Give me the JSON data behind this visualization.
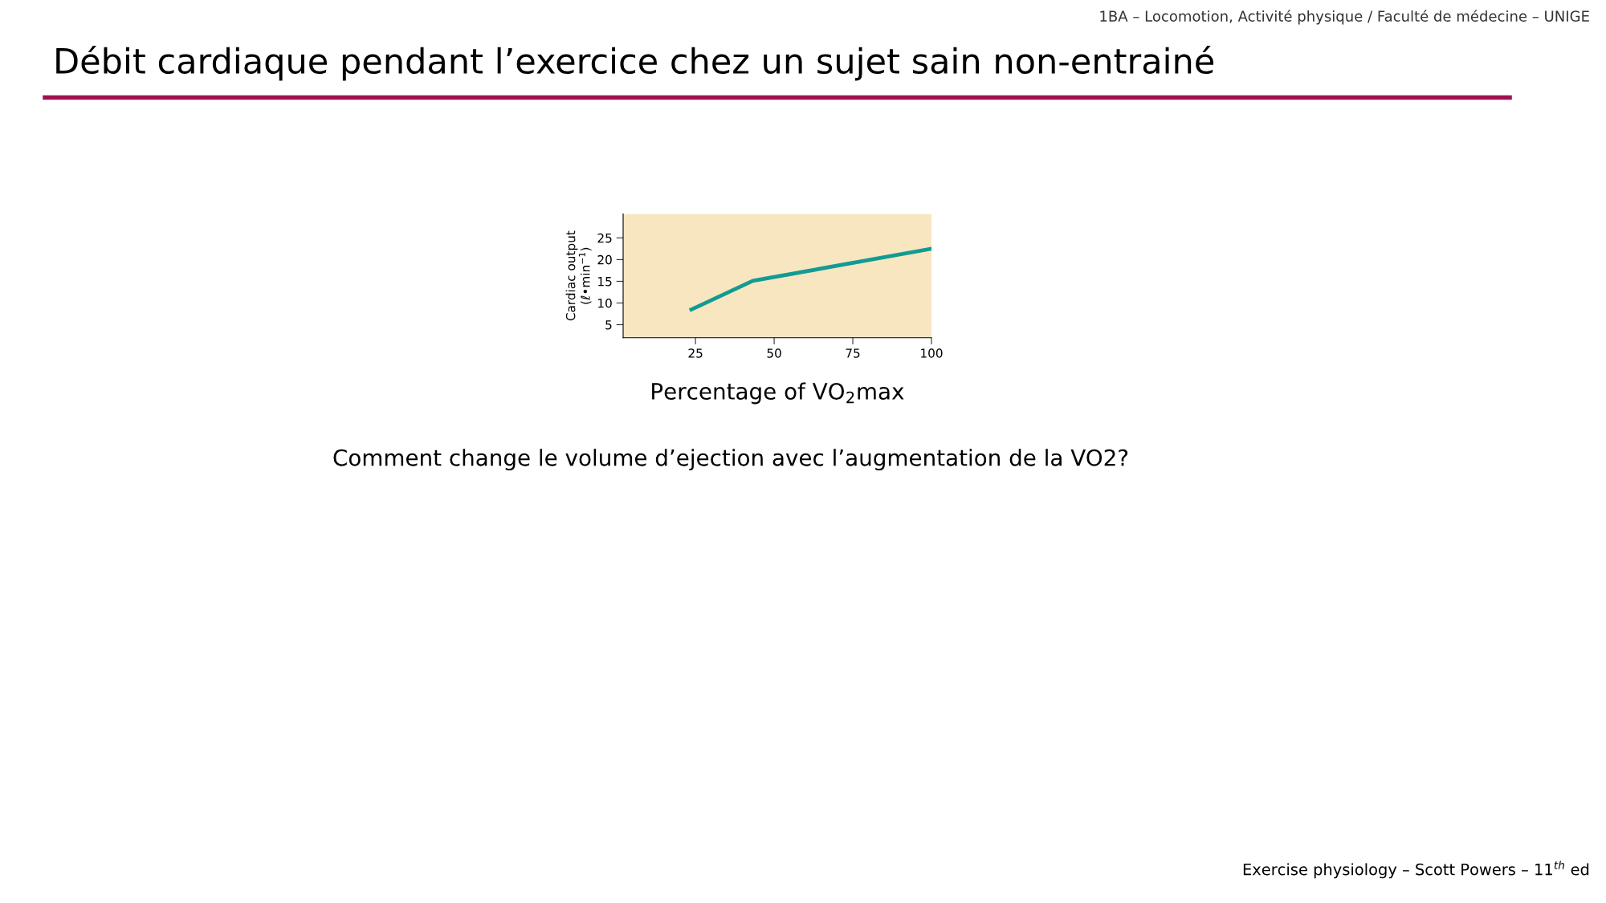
{
  "chart_data": {
    "type": "line",
    "title": "Débit cardiaque pendant l’exercice chez un sujet sain non-entrainé",
    "subtitle": "1BA – Locomotion, Activité physique / Faculté de médecine – UNIGE",
    "xlabel": "Percentage of VO$_{2}$max",
    "ylabel": "Cardiac output\n(ℓ•min$^{−1}$)",
    "x": [
      23.7,
      43.2,
      100
    ],
    "series": [
      {
        "color": "#129b94",
        "values": [
          8.5,
          15.1,
          22.5
        ]
      }
    ],
    "xlim": [
      2,
      100
    ],
    "ylim": [
      2,
      30.5
    ],
    "xticks": [
      25,
      50,
      75,
      100
    ],
    "yticks": [
      5,
      10,
      15,
      20,
      25
    ],
    "grid": false,
    "marker": "none",
    "line_style": "solid",
    "annotations": [
      "Comment change le volume d’ejection avec l’augmentation de la VO2?",
      "Exercise physiology – Scott Powers – 11$^{th}$ ed"
    ]
  }
}
